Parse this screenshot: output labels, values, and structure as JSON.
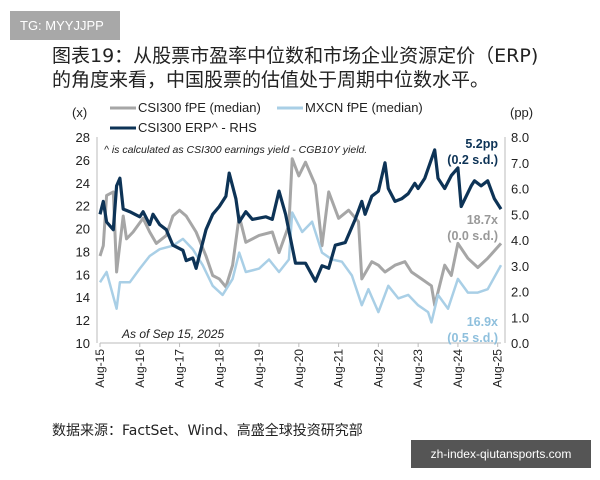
{
  "watermark_top": "TG: MYYJJPP",
  "title_line1": "图表19：从股票市盈率中位数和市场企业资源定价（ERP)",
  "title_line2": "的角度来看，中国股票的估值处于周期中位数水平。",
  "source": "数据来源：FactSet、Wind、高盛全球投资研究部",
  "watermark_bottom": "zh-index-qiutansports.com",
  "chart_data": {
    "type": "line",
    "left_axis_label": "(x)",
    "right_axis_label": "(pp)",
    "ylim_left": [
      10,
      28
    ],
    "ylim_right": [
      0,
      8
    ],
    "yticks_left": [
      "10",
      "12",
      "14",
      "16",
      "18",
      "20",
      "22",
      "24",
      "26",
      "28"
    ],
    "yticks_right": [
      "0.0",
      "1.0",
      "2.0",
      "3.0",
      "4.0",
      "5.0",
      "6.0",
      "7.0",
      "8.0"
    ],
    "xticks": [
      "Aug-15",
      "Aug-16",
      "Aug-17",
      "Aug-18",
      "Aug-19",
      "Aug-20",
      "Aug-21",
      "Aug-22",
      "Aug-23",
      "Aug-24",
      "Aug-25"
    ],
    "xlim": [
      "2015-08",
      "2025-09"
    ],
    "grid": false,
    "footnote": "^ is calculated as CSI300 earnings yield - CGB10Y yield.",
    "as_of": "As of Sep 15, 2025",
    "legend_placement": "top",
    "series": [
      {
        "name": "CSI300 fPE (median)",
        "axis": "left",
        "color": "#a6a6a6",
        "points": [
          [
            "2015-08",
            17.6
          ],
          [
            "2015-09",
            18.5
          ],
          [
            "2015-10",
            22.9
          ],
          [
            "2015-12",
            23.2
          ],
          [
            "2016-01",
            16.2
          ],
          [
            "2016-03",
            21.1
          ],
          [
            "2016-04",
            19.1
          ],
          [
            "2016-06",
            19.7
          ],
          [
            "2016-09",
            20.9
          ],
          [
            "2016-11",
            19.7
          ],
          [
            "2017-01",
            18.7
          ],
          [
            "2017-04",
            19.4
          ],
          [
            "2017-06",
            21.1
          ],
          [
            "2017-08",
            21.6
          ],
          [
            "2017-10",
            21.1
          ],
          [
            "2018-01",
            19.7
          ],
          [
            "2018-04",
            17.6
          ],
          [
            "2018-06",
            15.9
          ],
          [
            "2018-08",
            15.6
          ],
          [
            "2018-10",
            14.9
          ],
          [
            "2018-12",
            16.8
          ],
          [
            "2019-02",
            21.1
          ],
          [
            "2019-04",
            18.8
          ],
          [
            "2019-08",
            19.4
          ],
          [
            "2019-12",
            19.7
          ],
          [
            "2020-02",
            17.9
          ],
          [
            "2020-05",
            20.3
          ],
          [
            "2020-06",
            26.1
          ],
          [
            "2020-08",
            24.6
          ],
          [
            "2020-10",
            25.8
          ],
          [
            "2021-01",
            23.8
          ],
          [
            "2021-03",
            18.5
          ],
          [
            "2021-05",
            23.2
          ],
          [
            "2021-08",
            20.9
          ],
          [
            "2021-11",
            21.6
          ],
          [
            "2022-02",
            20.6
          ],
          [
            "2022-03",
            15.6
          ],
          [
            "2022-06",
            17.1
          ],
          [
            "2022-08",
            16.8
          ],
          [
            "2022-10",
            16.2
          ],
          [
            "2023-01",
            16.8
          ],
          [
            "2023-04",
            17.1
          ],
          [
            "2023-06",
            16.2
          ],
          [
            "2023-09",
            15.6
          ],
          [
            "2023-12",
            15.0
          ],
          [
            "2024-01",
            13.3
          ],
          [
            "2024-04",
            16.8
          ],
          [
            "2024-06",
            15.9
          ],
          [
            "2024-08",
            18.7
          ],
          [
            "2024-11",
            17.4
          ],
          [
            "2025-02",
            16.6
          ],
          [
            "2025-05",
            17.4
          ],
          [
            "2025-09",
            18.7
          ]
        ],
        "end_label": "18.7x",
        "end_sd": "(0.0 s.d.)"
      },
      {
        "name": "MXCN fPE (median)",
        "axis": "left",
        "color": "#a9cfe6",
        "points": [
          [
            "2015-08",
            15.3
          ],
          [
            "2015-10",
            16.2
          ],
          [
            "2016-01",
            13.0
          ],
          [
            "2016-02",
            15.3
          ],
          [
            "2016-05",
            15.3
          ],
          [
            "2016-08",
            16.5
          ],
          [
            "2016-11",
            17.6
          ],
          [
            "2017-02",
            18.2
          ],
          [
            "2017-06",
            18.5
          ],
          [
            "2017-09",
            19.1
          ],
          [
            "2017-12",
            18.2
          ],
          [
            "2018-03",
            16.8
          ],
          [
            "2018-06",
            15.0
          ],
          [
            "2018-09",
            14.2
          ],
          [
            "2018-12",
            15.6
          ],
          [
            "2019-02",
            17.9
          ],
          [
            "2019-04",
            16.2
          ],
          [
            "2019-08",
            16.5
          ],
          [
            "2019-11",
            17.3
          ],
          [
            "2020-02",
            16.2
          ],
          [
            "2020-05",
            17.3
          ],
          [
            "2020-06",
            21.4
          ],
          [
            "2020-09",
            19.7
          ],
          [
            "2020-12",
            20.6
          ],
          [
            "2021-03",
            17.9
          ],
          [
            "2021-06",
            17.3
          ],
          [
            "2021-09",
            17.1
          ],
          [
            "2021-12",
            15.9
          ],
          [
            "2022-03",
            13.3
          ],
          [
            "2022-05",
            14.7
          ],
          [
            "2022-08",
            12.7
          ],
          [
            "2022-11",
            15.0
          ],
          [
            "2023-02",
            13.9
          ],
          [
            "2023-05",
            14.2
          ],
          [
            "2023-08",
            13.3
          ],
          [
            "2023-11",
            12.7
          ],
          [
            "2023-12",
            11.8
          ],
          [
            "2024-02",
            14.2
          ],
          [
            "2024-05",
            13.0
          ],
          [
            "2024-08",
            15.6
          ],
          [
            "2024-11",
            14.4
          ],
          [
            "2025-02",
            14.4
          ],
          [
            "2025-05",
            14.7
          ],
          [
            "2025-09",
            16.8
          ]
        ],
        "end_label": "16.9x",
        "end_sd": "(0.5 s.d.)"
      },
      {
        "name": "CSI300 ERP^ - RHS",
        "axis": "right",
        "color": "#0d3356",
        "points": [
          [
            "2015-08",
            5.0
          ],
          [
            "2015-09",
            5.5
          ],
          [
            "2015-10",
            4.7
          ],
          [
            "2015-12",
            4.4
          ],
          [
            "2016-01",
            6.1
          ],
          [
            "2016-02",
            6.4
          ],
          [
            "2016-03",
            5.2
          ],
          [
            "2016-05",
            5.1
          ],
          [
            "2016-08",
            4.9
          ],
          [
            "2016-09",
            5.1
          ],
          [
            "2016-11",
            4.6
          ],
          [
            "2016-12",
            5.0
          ],
          [
            "2017-02",
            4.6
          ],
          [
            "2017-04",
            4.4
          ],
          [
            "2017-06",
            3.8
          ],
          [
            "2017-09",
            3.6
          ],
          [
            "2017-10",
            3.2
          ],
          [
            "2017-12",
            3.3
          ],
          [
            "2018-01",
            2.9
          ],
          [
            "2018-04",
            4.4
          ],
          [
            "2018-06",
            5.0
          ],
          [
            "2018-08",
            5.3
          ],
          [
            "2018-10",
            5.7
          ],
          [
            "2018-11",
            6.6
          ],
          [
            "2019-01",
            5.6
          ],
          [
            "2019-02",
            4.7
          ],
          [
            "2019-04",
            5.1
          ],
          [
            "2019-06",
            4.8
          ],
          [
            "2019-10",
            4.9
          ],
          [
            "2019-12",
            4.8
          ],
          [
            "2020-02",
            5.9
          ],
          [
            "2020-04",
            5.0
          ],
          [
            "2020-07",
            3.1
          ],
          [
            "2020-10",
            3.1
          ],
          [
            "2021-01",
            2.4
          ],
          [
            "2021-03",
            3.0
          ],
          [
            "2021-05",
            2.9
          ],
          [
            "2021-07",
            3.8
          ],
          [
            "2021-10",
            3.9
          ],
          [
            "2022-01",
            4.8
          ],
          [
            "2022-03",
            5.5
          ],
          [
            "2022-04",
            5.0
          ],
          [
            "2022-06",
            5.7
          ],
          [
            "2022-08",
            5.9
          ],
          [
            "2022-10",
            7.0
          ],
          [
            "2022-11",
            6.0
          ],
          [
            "2023-01",
            5.5
          ],
          [
            "2023-03",
            5.6
          ],
          [
            "2023-05",
            5.8
          ],
          [
            "2023-07",
            6.2
          ],
          [
            "2023-08",
            6.0
          ],
          [
            "2023-10",
            6.4
          ],
          [
            "2024-01",
            7.5
          ],
          [
            "2024-02",
            6.4
          ],
          [
            "2024-04",
            6.0
          ],
          [
            "2024-06",
            6.5
          ],
          [
            "2024-08",
            6.8
          ],
          [
            "2024-09",
            5.3
          ],
          [
            "2024-12",
            6.1
          ],
          [
            "2025-01",
            6.3
          ],
          [
            "2025-03",
            6.1
          ],
          [
            "2025-05",
            6.3
          ],
          [
            "2025-07",
            5.6
          ],
          [
            "2025-09",
            5.2
          ]
        ],
        "end_label": "5.2pp",
        "end_sd": "(0.2 s.d.)"
      }
    ]
  }
}
